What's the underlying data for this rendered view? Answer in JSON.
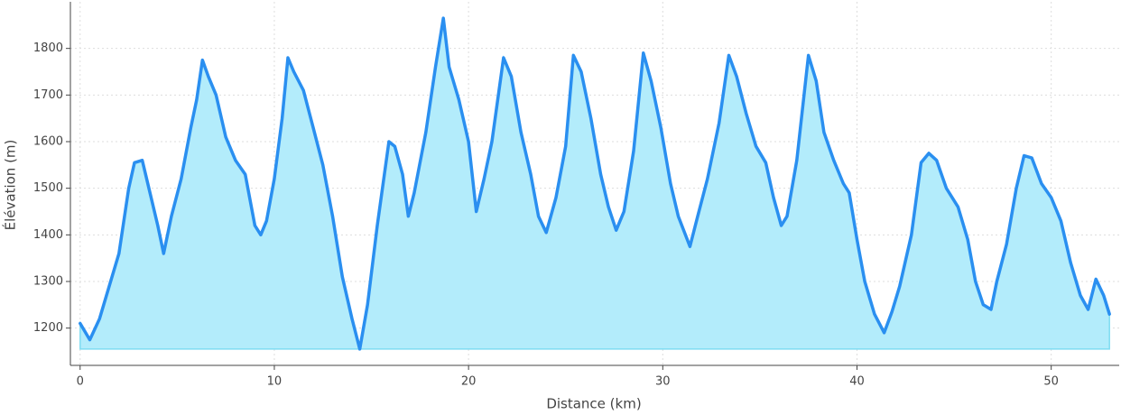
{
  "chart_data": {
    "type": "line",
    "xlabel": "Distance (km)",
    "ylabel": "Élévation (m)",
    "x": [
      0,
      0.5,
      1.0,
      1.5,
      2.0,
      2.5,
      2.8,
      3.2,
      3.6,
      4.0,
      4.3,
      4.7,
      5.2,
      5.7,
      6.0,
      6.3,
      6.6,
      7.0,
      7.5,
      8.0,
      8.5,
      9.0,
      9.3,
      9.6,
      10.0,
      10.4,
      10.7,
      11.0,
      11.5,
      12.0,
      12.5,
      13.0,
      13.5,
      14.0,
      14.4,
      14.8,
      15.3,
      15.9,
      16.2,
      16.6,
      16.9,
      17.2,
      17.8,
      18.3,
      18.7,
      19.0,
      19.5,
      20.0,
      20.4,
      20.8,
      21.2,
      21.8,
      22.2,
      22.7,
      23.2,
      23.6,
      24.0,
      24.5,
      25.0,
      25.4,
      25.8,
      26.3,
      26.8,
      27.2,
      27.6,
      28.0,
      28.5,
      29.0,
      29.4,
      29.9,
      30.4,
      30.8,
      31.4,
      31.8,
      32.3,
      32.9,
      33.4,
      33.8,
      34.3,
      34.8,
      35.3,
      35.7,
      36.1,
      36.4,
      36.9,
      37.5,
      37.9,
      38.3,
      38.8,
      39.3,
      39.6,
      40.0,
      40.4,
      40.9,
      41.4,
      41.8,
      42.2,
      42.8,
      43.3,
      43.7,
      44.1,
      44.6,
      45.2,
      45.7,
      46.1,
      46.5,
      46.9,
      47.2,
      47.7,
      48.2,
      48.6,
      49.0,
      49.5,
      50.0,
      50.5,
      51.0,
      51.5,
      51.9,
      52.3,
      52.7,
      53.0
    ],
    "series": [
      {
        "color": "#2a8ff0",
        "fill": "#b3ecfb",
        "values": [
          1210,
          1175,
          1220,
          1290,
          1360,
          1500,
          1555,
          1560,
          1490,
          1420,
          1360,
          1440,
          1520,
          1630,
          1690,
          1775,
          1740,
          1700,
          1610,
          1560,
          1530,
          1420,
          1400,
          1430,
          1520,
          1650,
          1780,
          1750,
          1710,
          1630,
          1550,
          1440,
          1310,
          1220,
          1155,
          1250,
          1420,
          1600,
          1590,
          1530,
          1440,
          1490,
          1620,
          1760,
          1865,
          1760,
          1690,
          1600,
          1450,
          1520,
          1600,
          1780,
          1740,
          1620,
          1530,
          1440,
          1405,
          1480,
          1590,
          1785,
          1750,
          1650,
          1530,
          1460,
          1410,
          1450,
          1580,
          1790,
          1730,
          1630,
          1510,
          1440,
          1375,
          1440,
          1520,
          1640,
          1785,
          1740,
          1660,
          1590,
          1555,
          1480,
          1420,
          1440,
          1560,
          1785,
          1730,
          1620,
          1560,
          1510,
          1490,
          1390,
          1300,
          1230,
          1190,
          1235,
          1290,
          1400,
          1555,
          1575,
          1560,
          1500,
          1460,
          1390,
          1300,
          1250,
          1240,
          1300,
          1380,
          1500,
          1570,
          1565,
          1510,
          1480,
          1430,
          1340,
          1270,
          1240,
          1305,
          1270,
          1230
        ]
      }
    ],
    "xlim": [
      -0.5,
      53.5
    ],
    "ylim": [
      1120,
      1900
    ],
    "xticks": [
      0,
      10,
      20,
      30,
      40,
      50
    ],
    "yticks": [
      1200,
      1300,
      1400,
      1500,
      1600,
      1700,
      1800
    ],
    "grid": true
  }
}
